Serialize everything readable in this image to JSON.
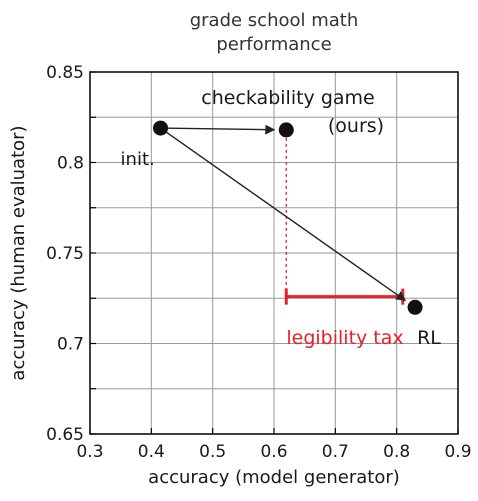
{
  "chart_data": {
    "type": "scatter",
    "title_lines": [
      "grade school math",
      "performance"
    ],
    "xlabel": "accuracy (model generator)",
    "ylabel": "accuracy (human evaluator)",
    "xlim": [
      0.3,
      0.9
    ],
    "ylim": [
      0.65,
      0.85
    ],
    "xticks": [
      "0.3",
      "0.4",
      "0.5",
      "0.6",
      "0.7",
      "0.8",
      "0.9"
    ],
    "yticks": [
      "0.65",
      "0.7",
      "0.75",
      "0.8",
      "0.85"
    ],
    "grid": true,
    "points": [
      {
        "label": "init.",
        "x": 0.415,
        "y": 0.819
      },
      {
        "label_lines": [
          "checkability game",
          "(ours)"
        ],
        "x": 0.62,
        "y": 0.818
      },
      {
        "label": "RL",
        "x": 0.83,
        "y": 0.72
      }
    ],
    "arrows": [
      {
        "from": [
          0.415,
          0.819
        ],
        "to": [
          0.62,
          0.818
        ]
      },
      {
        "from": [
          0.415,
          0.819
        ],
        "to": [
          0.83,
          0.72
        ]
      }
    ],
    "annotation": {
      "text": "legibility tax",
      "color": "#e8202a",
      "x_from": 0.62,
      "x_to": 0.81,
      "y": 0.727
    }
  }
}
